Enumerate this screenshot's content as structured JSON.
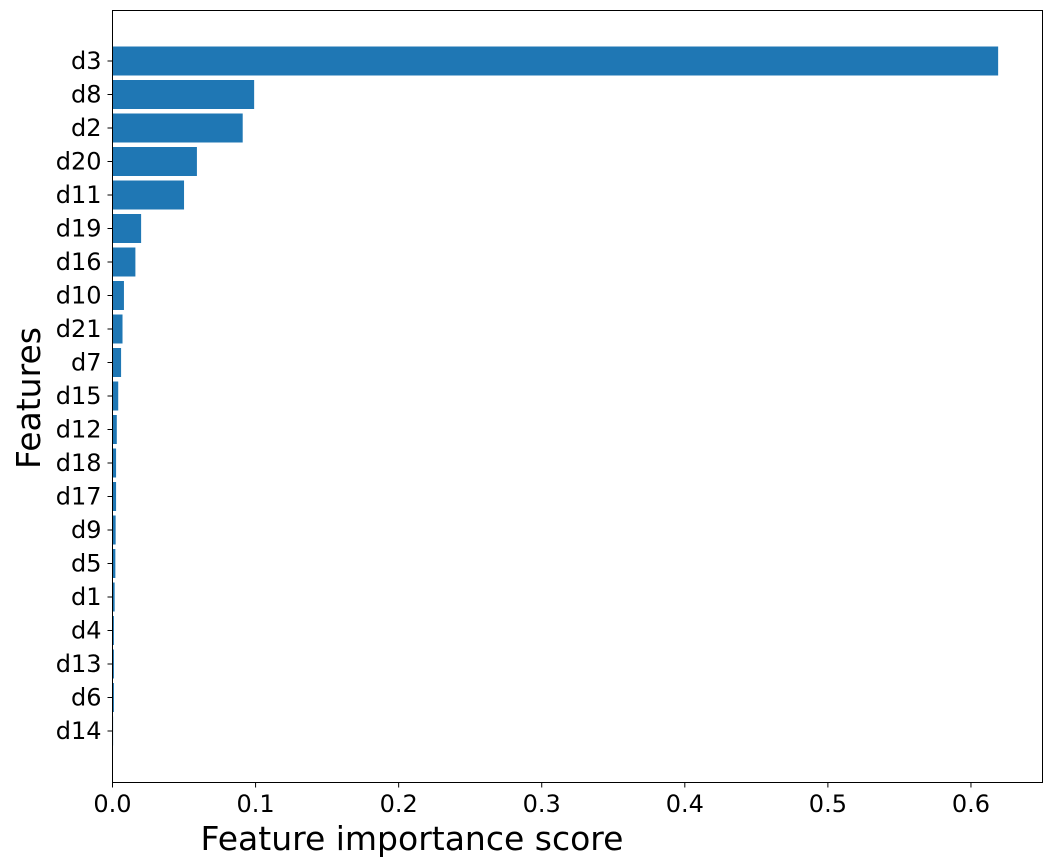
{
  "chart_data": {
    "type": "bar",
    "orientation": "horizontal",
    "title": "",
    "xlabel": "Feature importance score",
    "ylabel": "Features",
    "xlim": [
      0.0,
      0.65
    ],
    "xticks": [
      0.0,
      0.1,
      0.2,
      0.3,
      0.4,
      0.5,
      0.6
    ],
    "xtick_labels": [
      "0.0",
      "0.1",
      "0.2",
      "0.3",
      "0.4",
      "0.5",
      "0.6"
    ],
    "grid": false,
    "bar_color": "#1f77b4",
    "categories": [
      "d3",
      "d8",
      "d2",
      "d20",
      "d11",
      "d19",
      "d16",
      "d10",
      "d21",
      "d7",
      "d15",
      "d12",
      "d18",
      "d17",
      "d9",
      "d5",
      "d1",
      "d4",
      "d13",
      "d6",
      "d14"
    ],
    "values": [
      0.619,
      0.099,
      0.091,
      0.059,
      0.05,
      0.02,
      0.016,
      0.008,
      0.007,
      0.006,
      0.004,
      0.003,
      0.0025,
      0.0025,
      0.0022,
      0.002,
      0.0015,
      0.001,
      0.001,
      0.001,
      0.0002
    ]
  }
}
